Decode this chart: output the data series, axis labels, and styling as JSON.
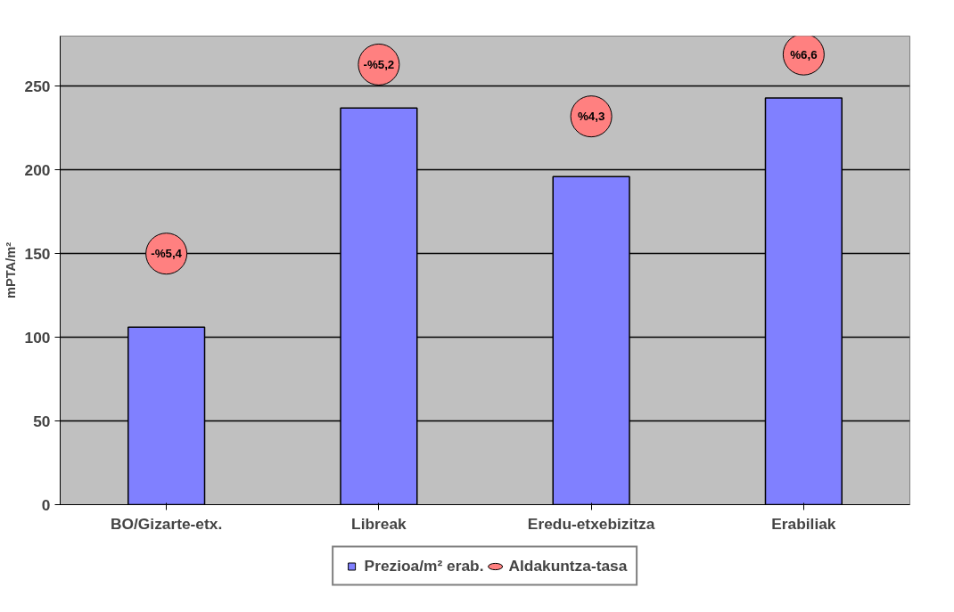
{
  "chart_data": {
    "type": "bar",
    "ylabel": "mPTA/m²",
    "categories": [
      "BO/Gizarte-etx.",
      "Libreak",
      "Eredu-etxebizitza",
      "Erabiliak"
    ],
    "series": [
      {
        "name": "Prezioa/m² erab.",
        "color": "#8080ff",
        "values": [
          106,
          237,
          196,
          243
        ]
      },
      {
        "name": "Aldakuntza-tasa",
        "type": "scatter",
        "color": "#ff8080",
        "values": [
          150,
          263,
          232,
          269
        ]
      }
    ],
    "annotations": [
      {
        "text": "-%5,4",
        "x": "BO/Gizarte-etx.",
        "y": 150
      },
      {
        "text": "-%5,2",
        "x": "Libreak",
        "y": 263
      },
      {
        "text": "%4,3",
        "x": "Eredu-etxebizitza",
        "y": 232
      },
      {
        "text": "%6,6",
        "x": "Erabiliak",
        "y": 269
      }
    ],
    "ylim": [
      0,
      280
    ],
    "yticks": [
      0,
      50,
      100,
      150,
      200,
      250
    ],
    "grid": "y",
    "legend": "bottom"
  }
}
